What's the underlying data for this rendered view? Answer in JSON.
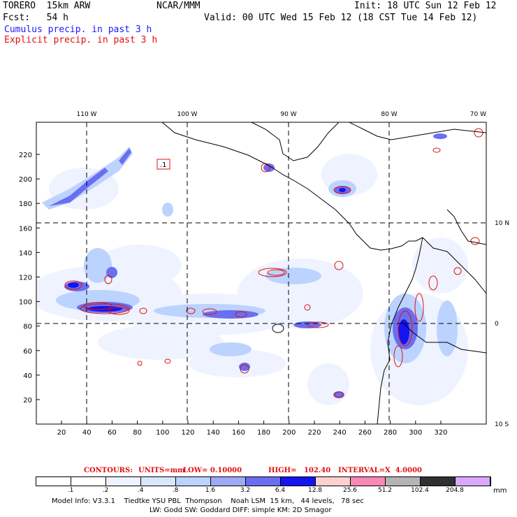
{
  "header": {
    "model": "TORERO  15km ARW",
    "org": "NCAR/MMM",
    "init": "Init: 18 UTC Sun 12 Feb 12",
    "fcst": "Fcst:   54 h",
    "valid": "Valid: 00 UTC Wed 15 Feb 12 (18 CST Tue 14 Feb 12)",
    "field1": "Cumulus precip. in past 3 h",
    "field2": "Explicit precip. in past 3 h"
  },
  "map": {
    "x_ticks": [
      "20",
      "40",
      "60",
      "80",
      "100",
      "120",
      "140",
      "160",
      "180",
      "200",
      "220",
      "240",
      "260",
      "280",
      "300",
      "320"
    ],
    "y_ticks": [
      "20",
      "40",
      "60",
      "80",
      "100",
      "120",
      "140",
      "160",
      "180",
      "200",
      "220"
    ],
    "lon_labels": [
      "110 W",
      "100 W",
      "90 W",
      "80 W",
      "70 W"
    ],
    "lat_labels": [
      "10 N",
      "0",
      "10 S"
    ],
    "box_label": ".1",
    "colors": {
      "contour": "#e01010",
      "coast": "#000000"
    }
  },
  "contours_line": {
    "label": "CONTOURS:",
    "units": "UNITS=mm",
    "low": "LOW= 0.10000",
    "high": "HIGH=   102.40",
    "interval": "INTERVAL=X  4.0000"
  },
  "colorbar": {
    "unit": "mm",
    "labels": [
      ".1",
      ".2",
      ".4",
      ".8",
      "1.6",
      "3.2",
      "6.4",
      "12.8",
      "25.6",
      "51.2",
      "102.4",
      "204.8"
    ],
    "colors": [
      "#ffffff",
      "#ffffff",
      "#eef3ff",
      "#d8e6ff",
      "#bcd3ff",
      "#a0a8f8",
      "#6a6ef0",
      "#1414f0",
      "#ffd0d0",
      "#f888b8",
      "#b4b4b4",
      "#303030",
      "#d8a8ff"
    ]
  },
  "model_info": {
    "line1": "Model Info: V3.3.1    Tiedtke YSU PBL  Thompson    Noah LSM  15 km,   44 levels,   78 sec",
    "line2": "LW: Godd SW: Goddard DIFF: simple KM: 2D Smagor"
  }
}
